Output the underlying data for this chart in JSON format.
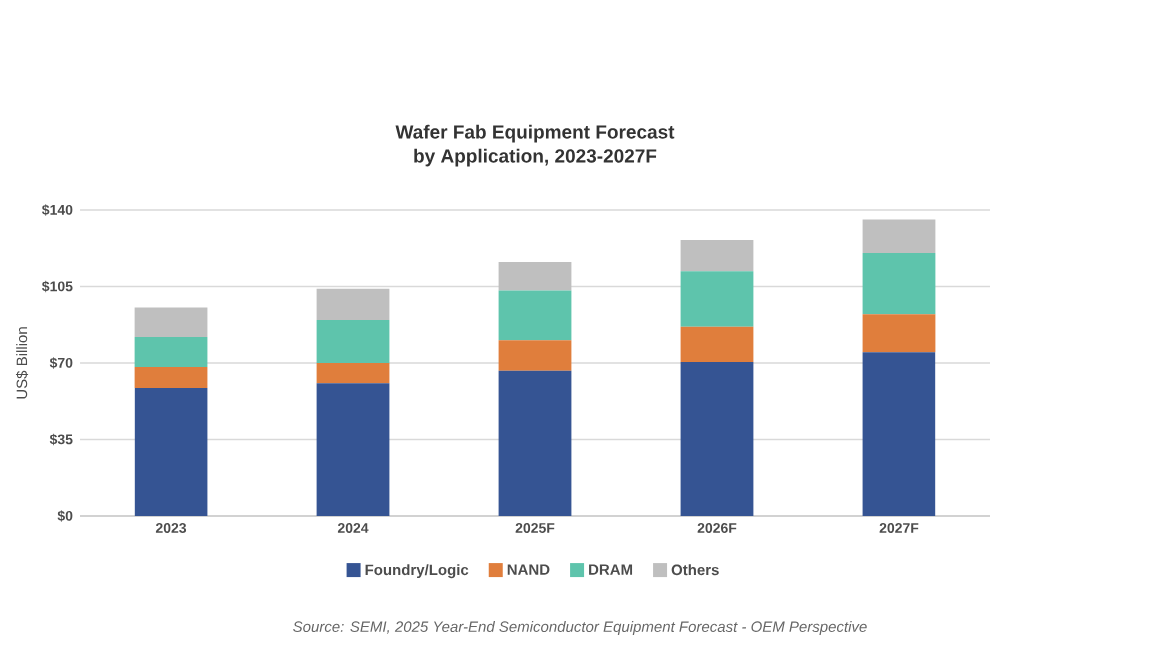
{
  "chart_data": {
    "type": "bar",
    "title": "Wafer Fab Equipment Forecast\nby Application, 2023-2027F",
    "ylabel": "US$ Billion",
    "categories": [
      "2023",
      "2024",
      "2025F",
      "2026F",
      "2027F"
    ],
    "stacked": true,
    "series": [
      {
        "name": "Foundry/Logic",
        "color": "#355493",
        "values": [
          58.6,
          60.7,
          66.4,
          70.5,
          74.9
        ]
      },
      {
        "name": "NAND",
        "color": "#e07e3c",
        "values": [
          9.6,
          9.3,
          14.0,
          16.1,
          17.4
        ]
      },
      {
        "name": "DRAM",
        "color": "#5ec4ac",
        "values": [
          13.7,
          19.7,
          22.8,
          25.4,
          28.0
        ]
      },
      {
        "name": "Others",
        "color": "#bfbfbf",
        "values": [
          13.5,
          14.3,
          13.0,
          14.3,
          15.3
        ]
      }
    ],
    "ylim": [
      0,
      140
    ],
    "yticks": [
      {
        "value": 0,
        "label": "$0"
      },
      {
        "value": 35,
        "label": "$35"
      },
      {
        "value": 70,
        "label": "$70"
      },
      {
        "value": 105,
        "label": "$105"
      },
      {
        "value": 140,
        "label": "$140"
      }
    ],
    "grid": "y",
    "legend": "bottom",
    "annotations": [
      "Source: SEMI, 2025 Year-End Semiconductor Equipment Forecast - OEM Perspective"
    ]
  }
}
